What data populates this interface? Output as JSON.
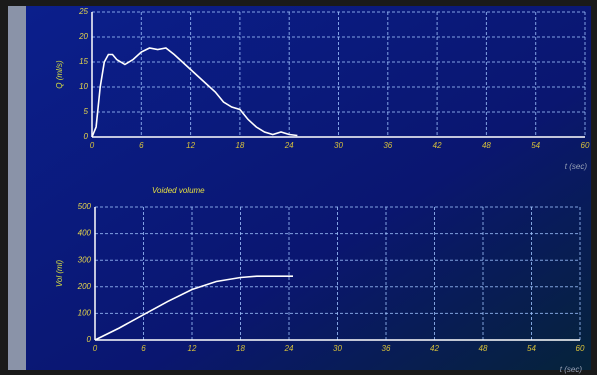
{
  "chart_data": [
    {
      "type": "line",
      "y_label": "Q (ml/s)",
      "x_label": "t (sec)",
      "x": [
        0,
        0.5,
        1,
        1.5,
        2,
        2.5,
        3,
        4,
        5,
        6,
        7,
        8,
        9,
        10,
        11,
        12,
        13,
        14,
        15,
        16,
        17,
        18,
        19,
        20,
        21,
        22,
        23,
        24,
        25
      ],
      "values": [
        0,
        2,
        10,
        15,
        16.5,
        16.5,
        15.5,
        14.5,
        15.5,
        17,
        17.8,
        17.5,
        17.8,
        16.5,
        15,
        13.5,
        12,
        10.5,
        9,
        7,
        6,
        5.5,
        3.5,
        2,
        1,
        0.5,
        1,
        0.5,
        0.3
      ],
      "color": "#ffffff",
      "xlim": [
        0,
        60
      ],
      "xticks": [
        0,
        6,
        12,
        18,
        24,
        30,
        36,
        42,
        48,
        54,
        60
      ],
      "ylim": [
        0,
        25
      ],
      "yticks": [
        0,
        5,
        10,
        15,
        20,
        25
      ],
      "grid": true
    },
    {
      "type": "line",
      "title": "Voided volume",
      "y_label": "Vol (ml)",
      "x_label": "t (sec)",
      "x": [
        0,
        3,
        6,
        9,
        12,
        15,
        18,
        20,
        24.5
      ],
      "values": [
        0,
        45,
        95,
        145,
        190,
        220,
        235,
        240,
        240
      ],
      "color": "#ffffff",
      "xlim": [
        0,
        60
      ],
      "xticks": [
        0,
        6,
        12,
        18,
        24,
        30,
        36,
        42,
        48,
        54,
        60
      ],
      "ylim": [
        0,
        500
      ],
      "yticks": [
        0,
        100,
        200,
        300,
        400,
        500
      ],
      "grid": true
    }
  ]
}
